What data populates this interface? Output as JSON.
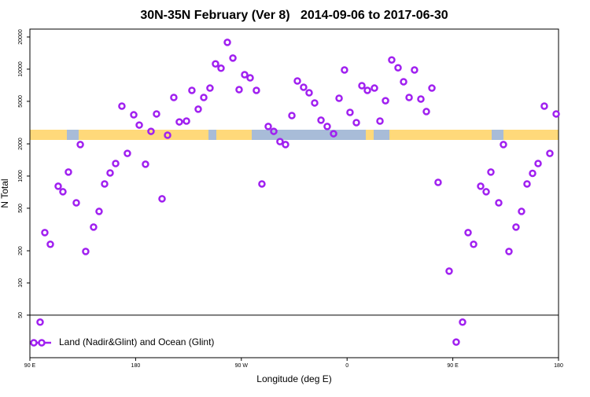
{
  "chart_data": {
    "type": "scatter",
    "title": "30N-35N February (Ver 8)   2014-09-06 to 2017-06-30",
    "xlabel": "Longitude (deg E)",
    "ylabel": "N Total",
    "xlim": [
      90,
      540
    ],
    "xticks": [
      {
        "value": 90,
        "label": "90 E"
      },
      {
        "value": 180,
        "label": "180"
      },
      {
        "value": 270,
        "label": "90 W"
      },
      {
        "value": 360,
        "label": "0"
      },
      {
        "value": 450,
        "label": "90 E"
      },
      {
        "value": 540,
        "label": "180"
      }
    ],
    "ylim": [
      20,
      23700
    ],
    "yscale": "log",
    "yticks": [
      50,
      100,
      200,
      500,
      1000,
      2000,
      5000,
      10000,
      20000
    ],
    "reference_line": 50,
    "legend": "bottomleft",
    "series": [
      {
        "name": "Land (Nadir&Glint) and Ocean (Glint)",
        "color": "#a020f0",
        "x": [
          98.7,
          102.7,
          107.4,
          114.1,
          118.1,
          122.8,
          129.5,
          132.9,
          137.5,
          144.2,
          148.9,
          153.6,
          158.3,
          163.0,
          168.3,
          173.0,
          178.4,
          183.1,
          188.4,
          193.1,
          197.8,
          202.5,
          207.2,
          212.5,
          217.2,
          223.3,
          227.9,
          233.3,
          238.0,
          243.3,
          248.0,
          252.7,
          258.1,
          262.8,
          268.1,
          272.8,
          277.5,
          282.8,
          287.5,
          292.9,
          297.6,
          302.9,
          307.6,
          313.0,
          317.7,
          323.0,
          327.7,
          332.4,
          337.8,
          343.1,
          348.5,
          353.2,
          357.8,
          362.5,
          367.9,
          372.6,
          377.3,
          383.3,
          388.0,
          392.7,
          398.0,
          403.4,
          408.1,
          412.8,
          417.4,
          422.8,
          427.5,
          432.2,
          437.5,
          446.9,
          452.9,
          458.3,
          463.0,
          467.7,
          473.7,
          478.4,
          482.4,
          489.1,
          493.1,
          497.8,
          503.8,
          508.5,
          513.2,
          517.9,
          522.6,
          527.9,
          532.6,
          538.0
        ],
        "values": [
          43,
          296,
          230,
          803,
          713,
          1090,
          562,
          1970,
          197,
          333,
          467,
          844,
          1070,
          1310,
          4510,
          1630,
          3740,
          3000,
          1290,
          2620,
          3810,
          613,
          2410,
          5430,
          3210,
          3270,
          6330,
          4220,
          5430,
          6650,
          11200,
          10200,
          17800,
          12700,
          6430,
          8870,
          8290,
          6330,
          844,
          2910,
          2620,
          2100,
          1970,
          3680,
          7750,
          6770,
          6010,
          4830,
          3330,
          2910,
          2490,
          5340,
          9820,
          3940,
          3160,
          7000,
          6330,
          6650,
          3270,
          5070,
          12200,
          10300,
          7620,
          5430,
          9820,
          5250,
          4010,
          6650,
          873,
          129,
          28,
          43,
          296,
          230,
          803,
          713,
          1090,
          562,
          1970,
          197,
          333,
          467,
          844,
          1060,
          1310,
          4510,
          1630,
          3810
        ]
      }
    ]
  }
}
